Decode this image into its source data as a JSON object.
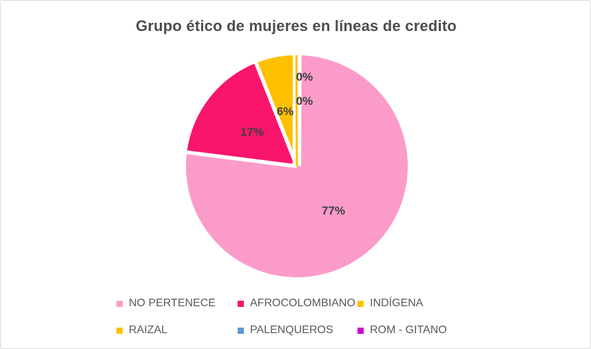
{
  "chart_data": {
    "type": "pie",
    "title": "Grupo ético de mujeres en líneas de credito",
    "categories": [
      "NO PERTENECE",
      "AFROCOLOMBIANO",
      "INDÍGENA",
      "RAIZAL",
      "PALENQUEROS",
      "ROM - GITANO"
    ],
    "values": [
      77,
      17,
      6,
      0,
      0,
      0
    ],
    "unit": "percent",
    "colors": [
      "#FB9BCA",
      "#F8156B",
      "#FFC000",
      "#FFC000",
      "#5B9BD5",
      "#CC00CC"
    ],
    "data_labels": [
      "77%",
      "17%",
      "6%",
      "0%",
      "0%"
    ],
    "start_angle_deg": 0,
    "direction": "clockwise",
    "slice_border_color": "#FFFFFF",
    "title_color": "#4D4D4D",
    "label_color": "#3F3F3F",
    "legend_position": "bottom",
    "legend_text_color": "#595959",
    "background": "#FFFFFF",
    "frame_border_color": "#D9D9D9"
  }
}
